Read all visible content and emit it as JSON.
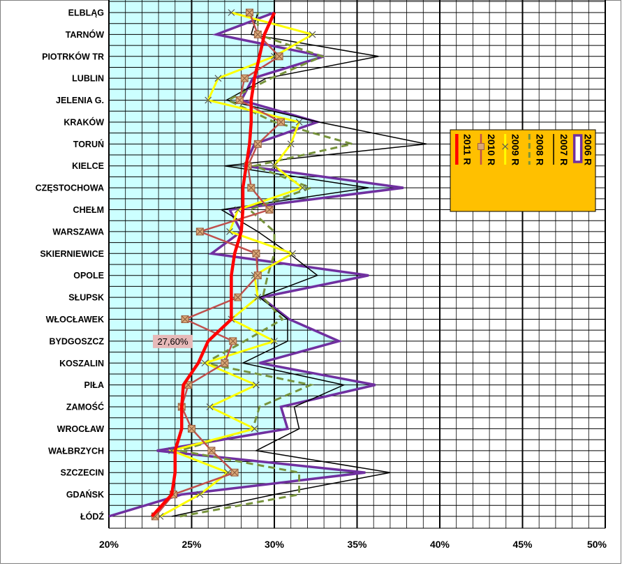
{
  "chart_data": {
    "type": "line",
    "orientation": "horizontal",
    "title": "",
    "xlabel": "",
    "ylabel": "",
    "xlim": [
      0.2,
      0.5
    ],
    "x_ticks": [
      "20%",
      "25%",
      "30%",
      "35%",
      "40%",
      "45%",
      "50%"
    ],
    "x_tick_values": [
      0.2,
      0.25,
      0.3,
      0.35,
      0.4,
      0.45,
      0.5
    ],
    "grid": true,
    "legend_position": "right",
    "categories": [
      "ŁÓDŹ",
      "GDAŃSK",
      "SZCZECIN",
      "WAŁBRZYCH",
      "WROCŁAW",
      "ZAMOŚĆ",
      "PIŁA",
      "KOSZALIN",
      "BYDGOSZCZ",
      "WŁOCŁAWEK",
      "SŁUPSK",
      "OPOLE",
      "SKIERNIEWICE",
      "WARSZAWA",
      "CHEŁM",
      "CZĘSTOCHOWA",
      "KIELCE",
      "TORUŃ",
      "KRAKÓW",
      "JELENIA G.",
      "LUBLIN",
      "PIOTRKÓW TR",
      "TARNÓW",
      "ELBLĄG"
    ],
    "annotation": {
      "text": "27,60%",
      "category": "BYDGOSZCZ"
    },
    "series": [
      {
        "name": "2006 R",
        "color": "#7030A0",
        "style": "solid",
        "width": 3.5,
        "marker": "none",
        "values": [
          0.2,
          0.244,
          0.355,
          0.229,
          0.308,
          0.304,
          0.361,
          0.291,
          0.339,
          0.309,
          0.292,
          0.357,
          0.262,
          0.28,
          0.273,
          0.378,
          0.282,
          0.288,
          0.326,
          0.28,
          0.287,
          0.33,
          0.265,
          0.3
        ]
      },
      {
        "name": "2007 R",
        "color": "#000000",
        "style": "solid",
        "width": 1.5,
        "marker": "none",
        "values": [
          0.238,
          0.3,
          0.37,
          0.289,
          0.315,
          0.312,
          0.342,
          0.281,
          0.308,
          0.308,
          0.291,
          0.326,
          0.309,
          0.29,
          0.268,
          0.357,
          0.27,
          0.392,
          0.327,
          0.271,
          0.295,
          0.363,
          0.286,
          0.29
        ]
      },
      {
        "name": "2008 R",
        "color": "#77933C",
        "style": "dashed",
        "width": 3,
        "marker": "none",
        "values": [
          0.243,
          0.315,
          0.315,
          0.243,
          0.287,
          0.291,
          0.322,
          0.258,
          0.282,
          0.305,
          0.293,
          0.296,
          0.3,
          0.3,
          0.285,
          0.322,
          0.288,
          0.347,
          0.3,
          0.272,
          0.298,
          0.329,
          0.29,
          0.29
        ]
      },
      {
        "name": "2009 R",
        "color": "#FFFF00",
        "style": "solid",
        "width": 3,
        "marker": "x",
        "values": [
          0.231,
          0.255,
          0.272,
          0.238,
          0.288,
          0.261,
          0.289,
          0.258,
          0.3,
          0.274,
          0.29,
          0.288,
          0.311,
          0.273,
          0.278,
          0.317,
          0.3,
          0.31,
          0.315,
          0.26,
          0.266,
          0.3,
          0.323,
          0.274
        ]
      },
      {
        "name": "2010 R",
        "color": "#C0504D",
        "style": "solid",
        "width": 2.5,
        "marker": "square",
        "values": [
          0.228,
          0.239,
          0.276,
          0.262,
          0.25,
          0.244,
          0.248,
          0.27,
          0.275,
          0.246,
          0.278,
          0.29,
          0.289,
          0.255,
          0.297,
          0.286,
          0.284,
          0.29,
          0.304,
          0.279,
          0.282,
          0.303,
          0.29,
          0.285
        ]
      },
      {
        "name": "2011 R",
        "color": "#FF0000",
        "style": "solid",
        "width": 4.5,
        "marker": "none",
        "values": [
          0.226,
          0.238,
          0.24,
          0.24,
          0.244,
          0.244,
          0.245,
          0.254,
          0.26,
          0.274,
          0.274,
          0.274,
          0.276,
          0.28,
          0.281,
          0.281,
          0.283,
          0.285,
          0.286,
          0.286,
          0.288,
          0.291,
          0.294,
          0.3
        ]
      }
    ]
  },
  "colors": {
    "area_fill": "#CCFFFF",
    "legend_bg": "#FFC000",
    "annotation_bg": "#E6B9B8",
    "grid": "#000000",
    "frame": "#808080"
  }
}
